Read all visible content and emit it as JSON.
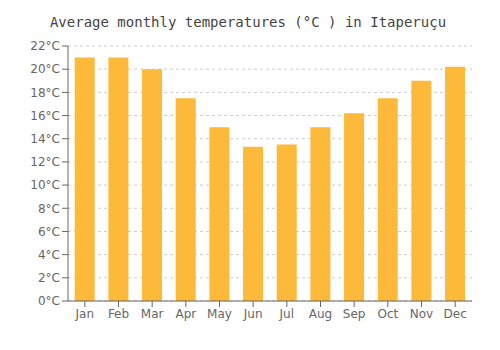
{
  "chart_data": {
    "type": "bar",
    "title": "Average monthly temperatures (°C ) in Itaperuçu",
    "categories": [
      "Jan",
      "Feb",
      "Mar",
      "Apr",
      "May",
      "Jun",
      "Jul",
      "Aug",
      "Sep",
      "Oct",
      "Nov",
      "Dec"
    ],
    "values": [
      21.0,
      21.0,
      20.0,
      17.5,
      15.0,
      13.3,
      13.5,
      15.0,
      16.2,
      17.5,
      19.0,
      20.2
    ],
    "color": "#FDB93A",
    "ylim": [
      0,
      22
    ],
    "yticks": [
      {
        "value": 0,
        "label": "0°C"
      },
      {
        "value": 2,
        "label": "2°C"
      },
      {
        "value": 4,
        "label": "4°C"
      },
      {
        "value": 6,
        "label": "6°C"
      },
      {
        "value": 8,
        "label": "8°C"
      },
      {
        "value": 10,
        "label": "10°C"
      },
      {
        "value": 12,
        "label": "12°C"
      },
      {
        "value": 14,
        "label": "14°C"
      },
      {
        "value": 16,
        "label": "16°C"
      },
      {
        "value": 18,
        "label": "18°C"
      },
      {
        "value": 20,
        "label": "20°C"
      },
      {
        "value": 22,
        "label": "22°C"
      }
    ],
    "grid": true
  }
}
